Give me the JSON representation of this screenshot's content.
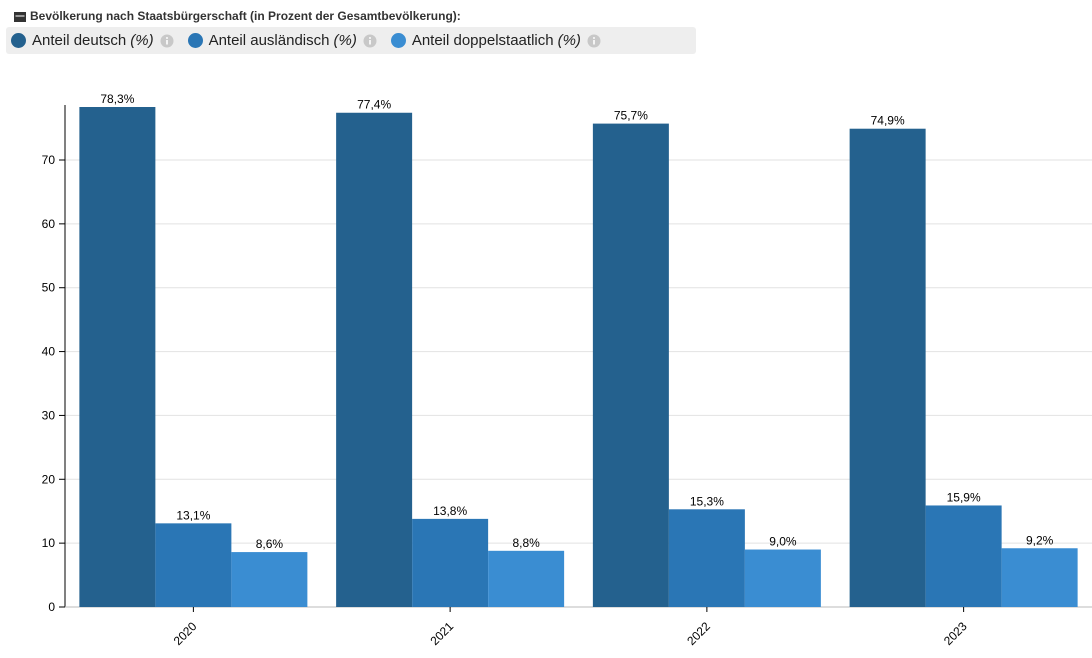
{
  "header": {
    "title": "Bevölkerung nach Staatsbürgerschaft (in Prozent der Gesamtbevölkerung):"
  },
  "legend": [
    {
      "label": "Anteil deutsch",
      "unit": "(%)",
      "color": "#24618e",
      "icon": "info-icon"
    },
    {
      "label": "Anteil ausländisch",
      "unit": "(%)",
      "color": "#2a76b5",
      "icon": "info-icon"
    },
    {
      "label": "Anteil doppelstaatlich",
      "unit": "(%)",
      "color": "#3a8dd2",
      "icon": "info-icon"
    }
  ],
  "chart_data": {
    "type": "bar",
    "categories": [
      "2020",
      "2021",
      "2022",
      "2023"
    ],
    "series": [
      {
        "name": "Anteil deutsch (%)",
        "values": [
          78.3,
          77.4,
          75.7,
          74.9
        ],
        "labels": [
          "78,3%",
          "77,4%",
          "75,7%",
          "74,9%"
        ],
        "color": "#24618e"
      },
      {
        "name": "Anteil ausländisch (%)",
        "values": [
          13.1,
          13.8,
          15.3,
          15.9
        ],
        "labels": [
          "13,1%",
          "13,8%",
          "15,3%",
          "15,9%"
        ],
        "color": "#2a76b5"
      },
      {
        "name": "Anteil doppelstaatlich (%)",
        "values": [
          8.6,
          8.8,
          9.0,
          9.2
        ],
        "labels": [
          "8,6%",
          "8,8%",
          "9,0%",
          "9,2%"
        ],
        "color": "#3a8dd2"
      }
    ],
    "ylim": [
      0,
      78.3
    ],
    "yticks": [
      0,
      10,
      20,
      30,
      40,
      50,
      60,
      70
    ],
    "grid": true,
    "legend_position": "top-left",
    "xlabel_rotation": "-45"
  }
}
